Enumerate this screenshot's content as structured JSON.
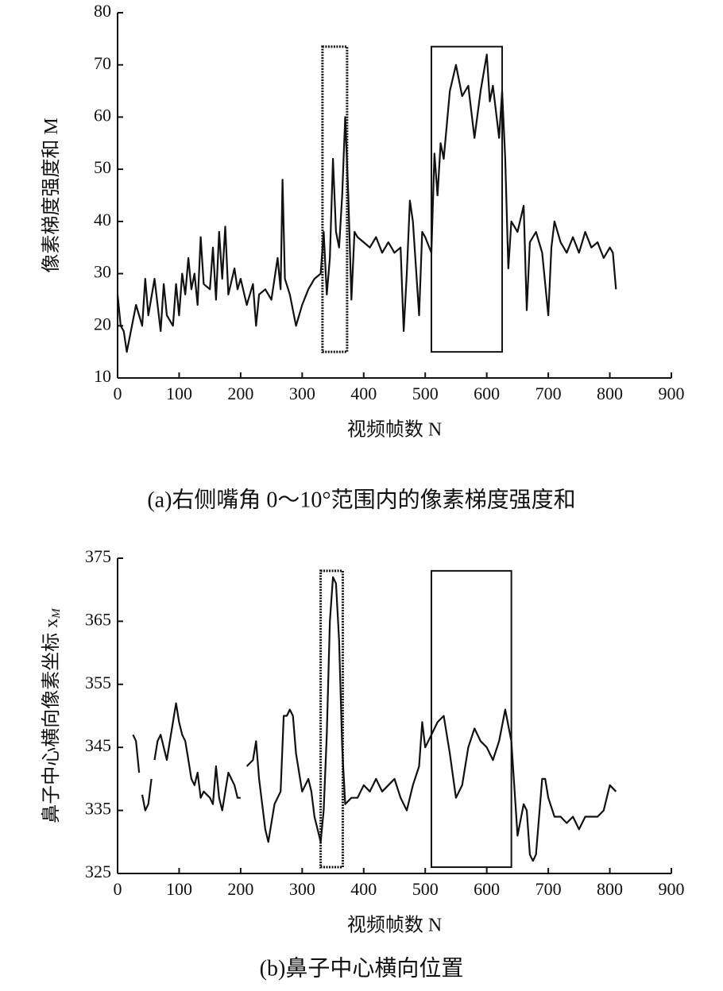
{
  "chart_data": [
    {
      "type": "line",
      "caption": "(a)右侧嘴角 0～10°范围内的像素梯度强度和",
      "xlabel": "视频帧数 N",
      "ylabel": "像素梯度强度和 M",
      "color": "#111111",
      "xlim": [
        0,
        900
      ],
      "xticks": [
        0,
        100,
        200,
        300,
        400,
        500,
        600,
        700,
        800,
        900
      ],
      "ylim": [
        10,
        80
      ],
      "yticks": [
        10,
        20,
        30,
        40,
        50,
        60,
        70,
        80
      ],
      "x": [
        0,
        5,
        10,
        15,
        20,
        30,
        40,
        45,
        50,
        60,
        70,
        75,
        80,
        90,
        95,
        100,
        105,
        110,
        115,
        120,
        125,
        130,
        135,
        140,
        150,
        155,
        160,
        165,
        170,
        175,
        180,
        190,
        195,
        200,
        210,
        220,
        225,
        230,
        240,
        250,
        260,
        265,
        268,
        272,
        280,
        290,
        300,
        310,
        320,
        330,
        335,
        340,
        345,
        350,
        355,
        360,
        365,
        370,
        375,
        380,
        385,
        390,
        400,
        410,
        420,
        430,
        440,
        450,
        460,
        465,
        470,
        475,
        480,
        490,
        495,
        500,
        510,
        515,
        520,
        525,
        530,
        540,
        550,
        560,
        570,
        580,
        590,
        600,
        605,
        610,
        620,
        625,
        630,
        635,
        640,
        650,
        660,
        665,
        670,
        680,
        690,
        700,
        705,
        710,
        720,
        730,
        740,
        750,
        760,
        770,
        780,
        790,
        800,
        805,
        810
      ],
      "values": [
        26,
        20,
        19,
        15,
        18,
        24,
        20,
        29,
        22,
        29,
        19,
        28,
        22,
        20,
        28,
        22,
        30,
        26,
        33,
        27,
        30,
        24,
        37,
        28,
        27,
        35,
        25,
        38,
        29,
        39,
        26,
        31,
        27,
        29,
        24,
        28,
        20,
        26,
        27,
        25,
        33,
        27,
        48,
        29,
        26,
        20,
        24,
        27,
        29,
        30,
        38,
        26,
        33,
        52,
        38,
        35,
        45,
        60,
        45,
        25,
        38,
        37,
        36,
        35,
        37,
        34,
        36,
        34,
        35,
        19,
        30,
        44,
        40,
        22,
        38,
        37,
        34,
        53,
        45,
        55,
        52,
        65,
        70,
        64,
        66,
        56,
        65,
        72,
        63,
        66,
        56,
        65,
        52,
        31,
        40,
        38,
        43,
        23,
        36,
        38,
        34,
        22,
        35,
        40,
        36,
        34,
        37,
        34,
        38,
        35,
        36,
        33,
        35,
        34,
        27
      ],
      "regions": [
        {
          "x": [
            333,
            373
          ],
          "y": [
            15,
            73.5
          ],
          "style": "dotted"
        },
        {
          "x": [
            510,
            625
          ],
          "y": [
            15,
            73.5
          ],
          "style": "solid"
        }
      ]
    },
    {
      "type": "line",
      "caption": "(b)鼻子中心横向位置",
      "xlabel": "视频帧数 N",
      "ylabel": "鼻子中心横向像素坐标 x",
      "ylabel_sub": "M",
      "color": "#111111",
      "xlim": [
        0,
        900
      ],
      "xticks": [
        0,
        100,
        200,
        300,
        400,
        500,
        600,
        700,
        800,
        900
      ],
      "ylim": [
        325,
        375
      ],
      "yticks": [
        325,
        335,
        345,
        355,
        365,
        375
      ],
      "x": [
        25,
        30,
        35,
        38,
        40,
        45,
        50,
        55,
        58,
        60,
        65,
        70,
        75,
        80,
        85,
        90,
        95,
        100,
        105,
        110,
        115,
        120,
        125,
        130,
        135,
        140,
        150,
        155,
        160,
        165,
        170,
        180,
        190,
        195,
        200,
        205,
        210,
        220,
        225,
        230,
        235,
        240,
        245,
        250,
        255,
        260,
        265,
        270,
        275,
        280,
        285,
        290,
        300,
        310,
        315,
        320,
        330,
        335,
        340,
        345,
        350,
        355,
        360,
        365,
        370,
        380,
        390,
        400,
        410,
        420,
        430,
        440,
        450,
        460,
        470,
        480,
        490,
        495,
        500,
        510,
        520,
        530,
        540,
        550,
        560,
        570,
        580,
        590,
        600,
        610,
        620,
        630,
        640,
        650,
        660,
        665,
        670,
        675,
        680,
        690,
        695,
        700,
        710,
        720,
        730,
        740,
        750,
        760,
        770,
        780,
        790,
        800,
        810
      ],
      "values": [
        347,
        346,
        341,
        null,
        337.5,
        335,
        336,
        340,
        null,
        343,
        346,
        347,
        345,
        343,
        346,
        349,
        352,
        349,
        347,
        346,
        343,
        340,
        339,
        341,
        337,
        338,
        337,
        336,
        342,
        337,
        335,
        341,
        339,
        337,
        337,
        null,
        342,
        343,
        346,
        340,
        336,
        332,
        330,
        333,
        336,
        337,
        338,
        350,
        350,
        351,
        350,
        344,
        338,
        340,
        338,
        334,
        330,
        335,
        347,
        365,
        372,
        371,
        362,
        345,
        336,
        337,
        337,
        339,
        338,
        340,
        338,
        339,
        340,
        337,
        335,
        339,
        342,
        349,
        345,
        347,
        349,
        350,
        344,
        337,
        339,
        345,
        348,
        346,
        345,
        343,
        346,
        351,
        346,
        331,
        336,
        335,
        328,
        327,
        328,
        340,
        340,
        337,
        334,
        334,
        333,
        334,
        332,
        334,
        334,
        334,
        335,
        339,
        338
      ],
      "regions": [
        {
          "x": [
            330,
            366
          ],
          "y": [
            326,
            373
          ],
          "style": "dotted"
        },
        {
          "x": [
            510,
            640
          ],
          "y": [
            326,
            373
          ],
          "style": "solid"
        }
      ]
    }
  ]
}
